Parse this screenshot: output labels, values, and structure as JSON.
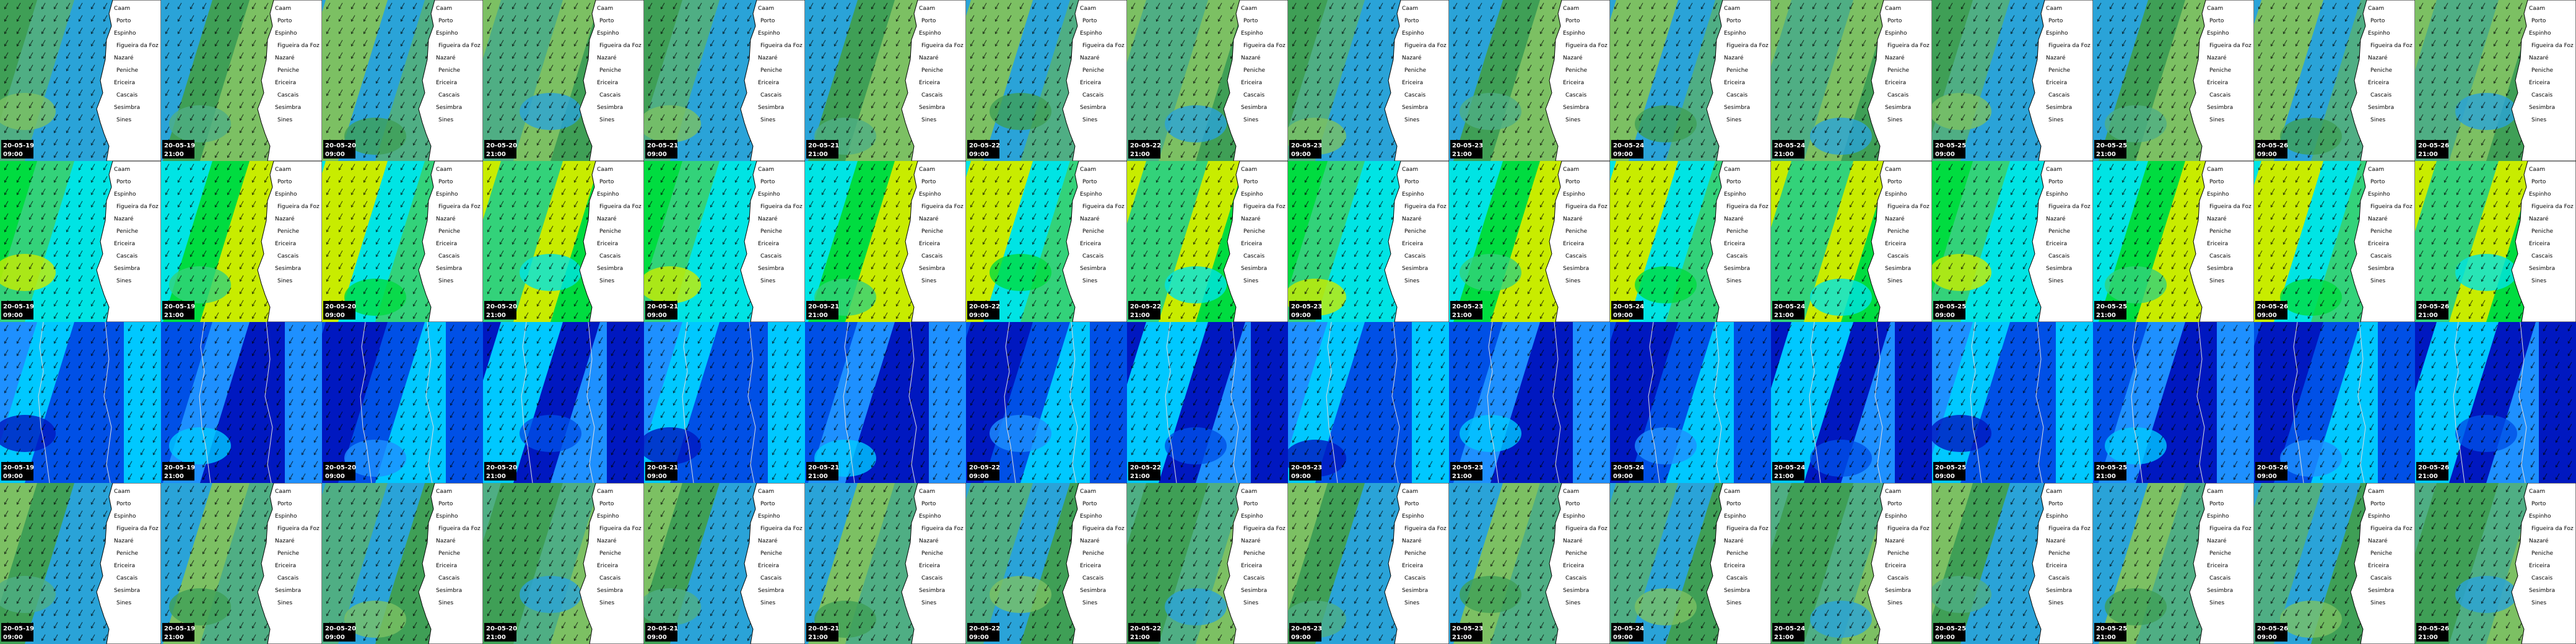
{
  "timestamps": [
    {
      "date": "20-05-19",
      "time": "09:00"
    },
    {
      "date": "20-05-19",
      "time": "21:00"
    },
    {
      "date": "20-05-20",
      "time": "09:00"
    },
    {
      "date": "20-05-20",
      "time": "21:00"
    },
    {
      "date": "20-05-21",
      "time": "09:00"
    },
    {
      "date": "20-05-21",
      "time": "21:00"
    },
    {
      "date": "20-05-22",
      "time": "09:00"
    },
    {
      "date": "20-05-22",
      "time": "21:00"
    },
    {
      "date": "20-05-23",
      "time": "09:00"
    },
    {
      "date": "20-05-23",
      "time": "21:00"
    },
    {
      "date": "20-05-24",
      "time": "09:00"
    },
    {
      "date": "20-05-24",
      "time": "21:00"
    },
    {
      "date": "20-05-25",
      "time": "09:00"
    },
    {
      "date": "20-05-25",
      "time": "21:00"
    },
    {
      "date": "20-05-26",
      "time": "09:00"
    },
    {
      "date": "20-05-26",
      "time": "21:00"
    }
  ],
  "towns": [
    "Caam",
    "Porto",
    "Espinho",
    "Figueira da Foz",
    "Nazaré",
    "Peniche",
    "Ericeira",
    "Cascais",
    "Sesimbra",
    "Sines"
  ]
}
